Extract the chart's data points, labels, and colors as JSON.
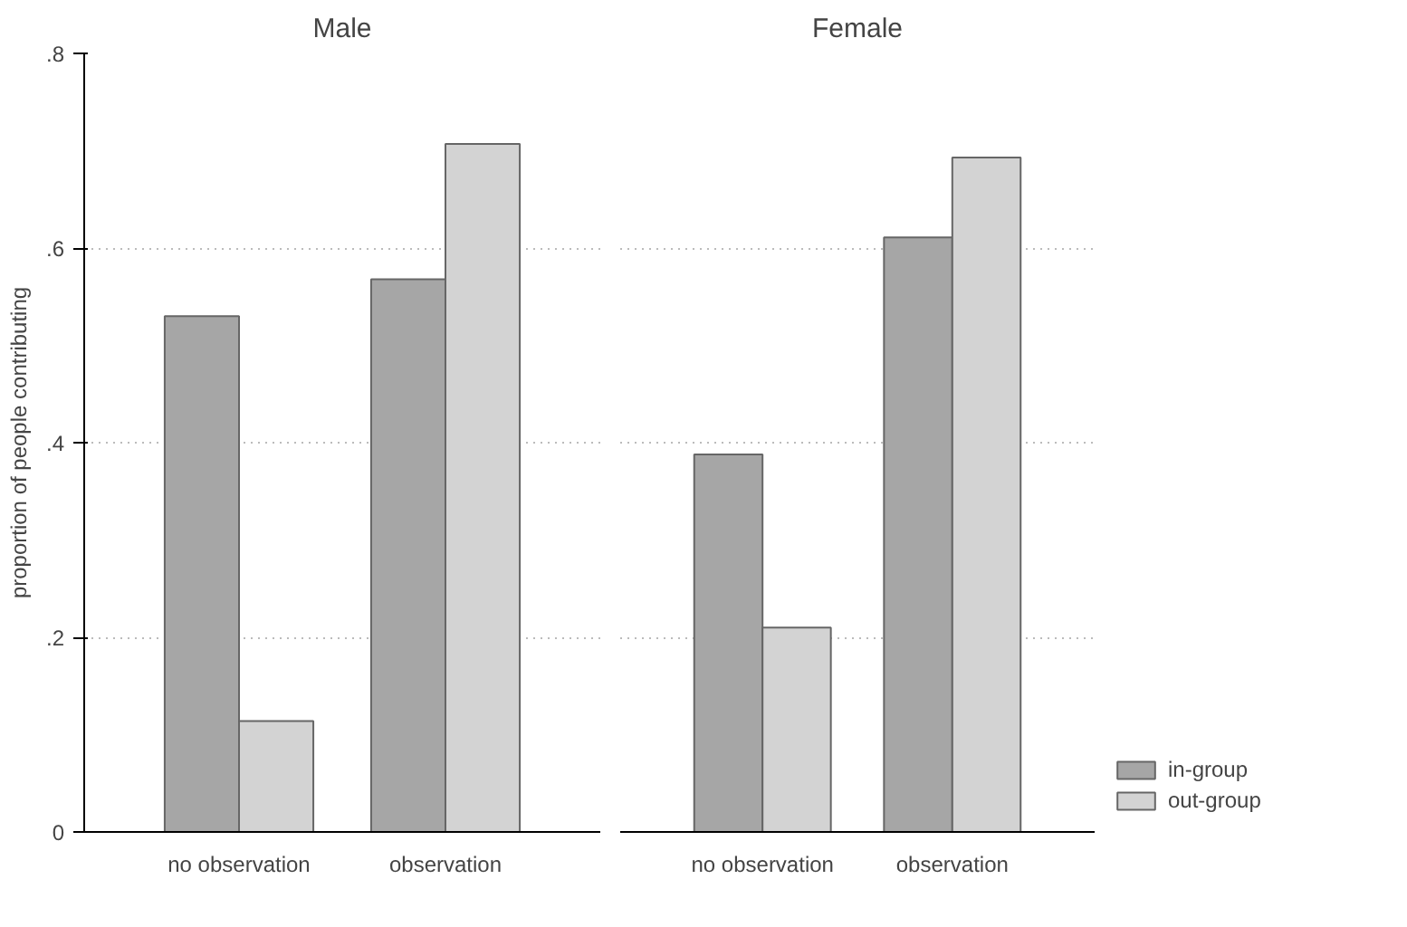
{
  "chart_data": [
    {
      "type": "bar",
      "title": "Male",
      "ylabel": "proportion of people contributing",
      "categories": [
        "no observation",
        "observation"
      ],
      "series": [
        {
          "color": "#a6a6a6",
          "values": [
            0.53,
            0.568
          ]
        },
        {
          "color": "#d3d3d3",
          "values": [
            0.114,
            0.707
          ]
        }
      ],
      "ylim": [
        0,
        0.8
      ],
      "yticks": [
        0,
        {
          "value": 0.2,
          "label": ".2"
        },
        {
          "value": 0.4,
          "label": ".4"
        },
        {
          "value": 0.6,
          "label": ".6"
        },
        {
          "value": 0.8,
          "label": ".8"
        }
      ],
      "grid": "y",
      "legend": false
    },
    {
      "type": "bar",
      "title": "Female",
      "categories": [
        "no observation",
        "observation"
      ],
      "series": [
        {
          "name": "in-group",
          "color": "#a6a6a6",
          "values": [
            0.388,
            0.611
          ]
        },
        {
          "name": "out-group",
          "color": "#d3d3d3",
          "values": [
            0.21,
            0.693
          ]
        }
      ],
      "ylim": [
        0,
        0.8
      ],
      "yticks": [
        {
          "value": 0,
          "label": null
        },
        {
          "value": 0.2,
          "label": null
        },
        {
          "value": 0.4,
          "label": null
        },
        {
          "value": 0.6,
          "label": null
        },
        {
          "value": 0.8,
          "label": null
        }
      ],
      "grid": "y",
      "legend": "bottom right",
      "tick_labels": "x"
    }
  ]
}
